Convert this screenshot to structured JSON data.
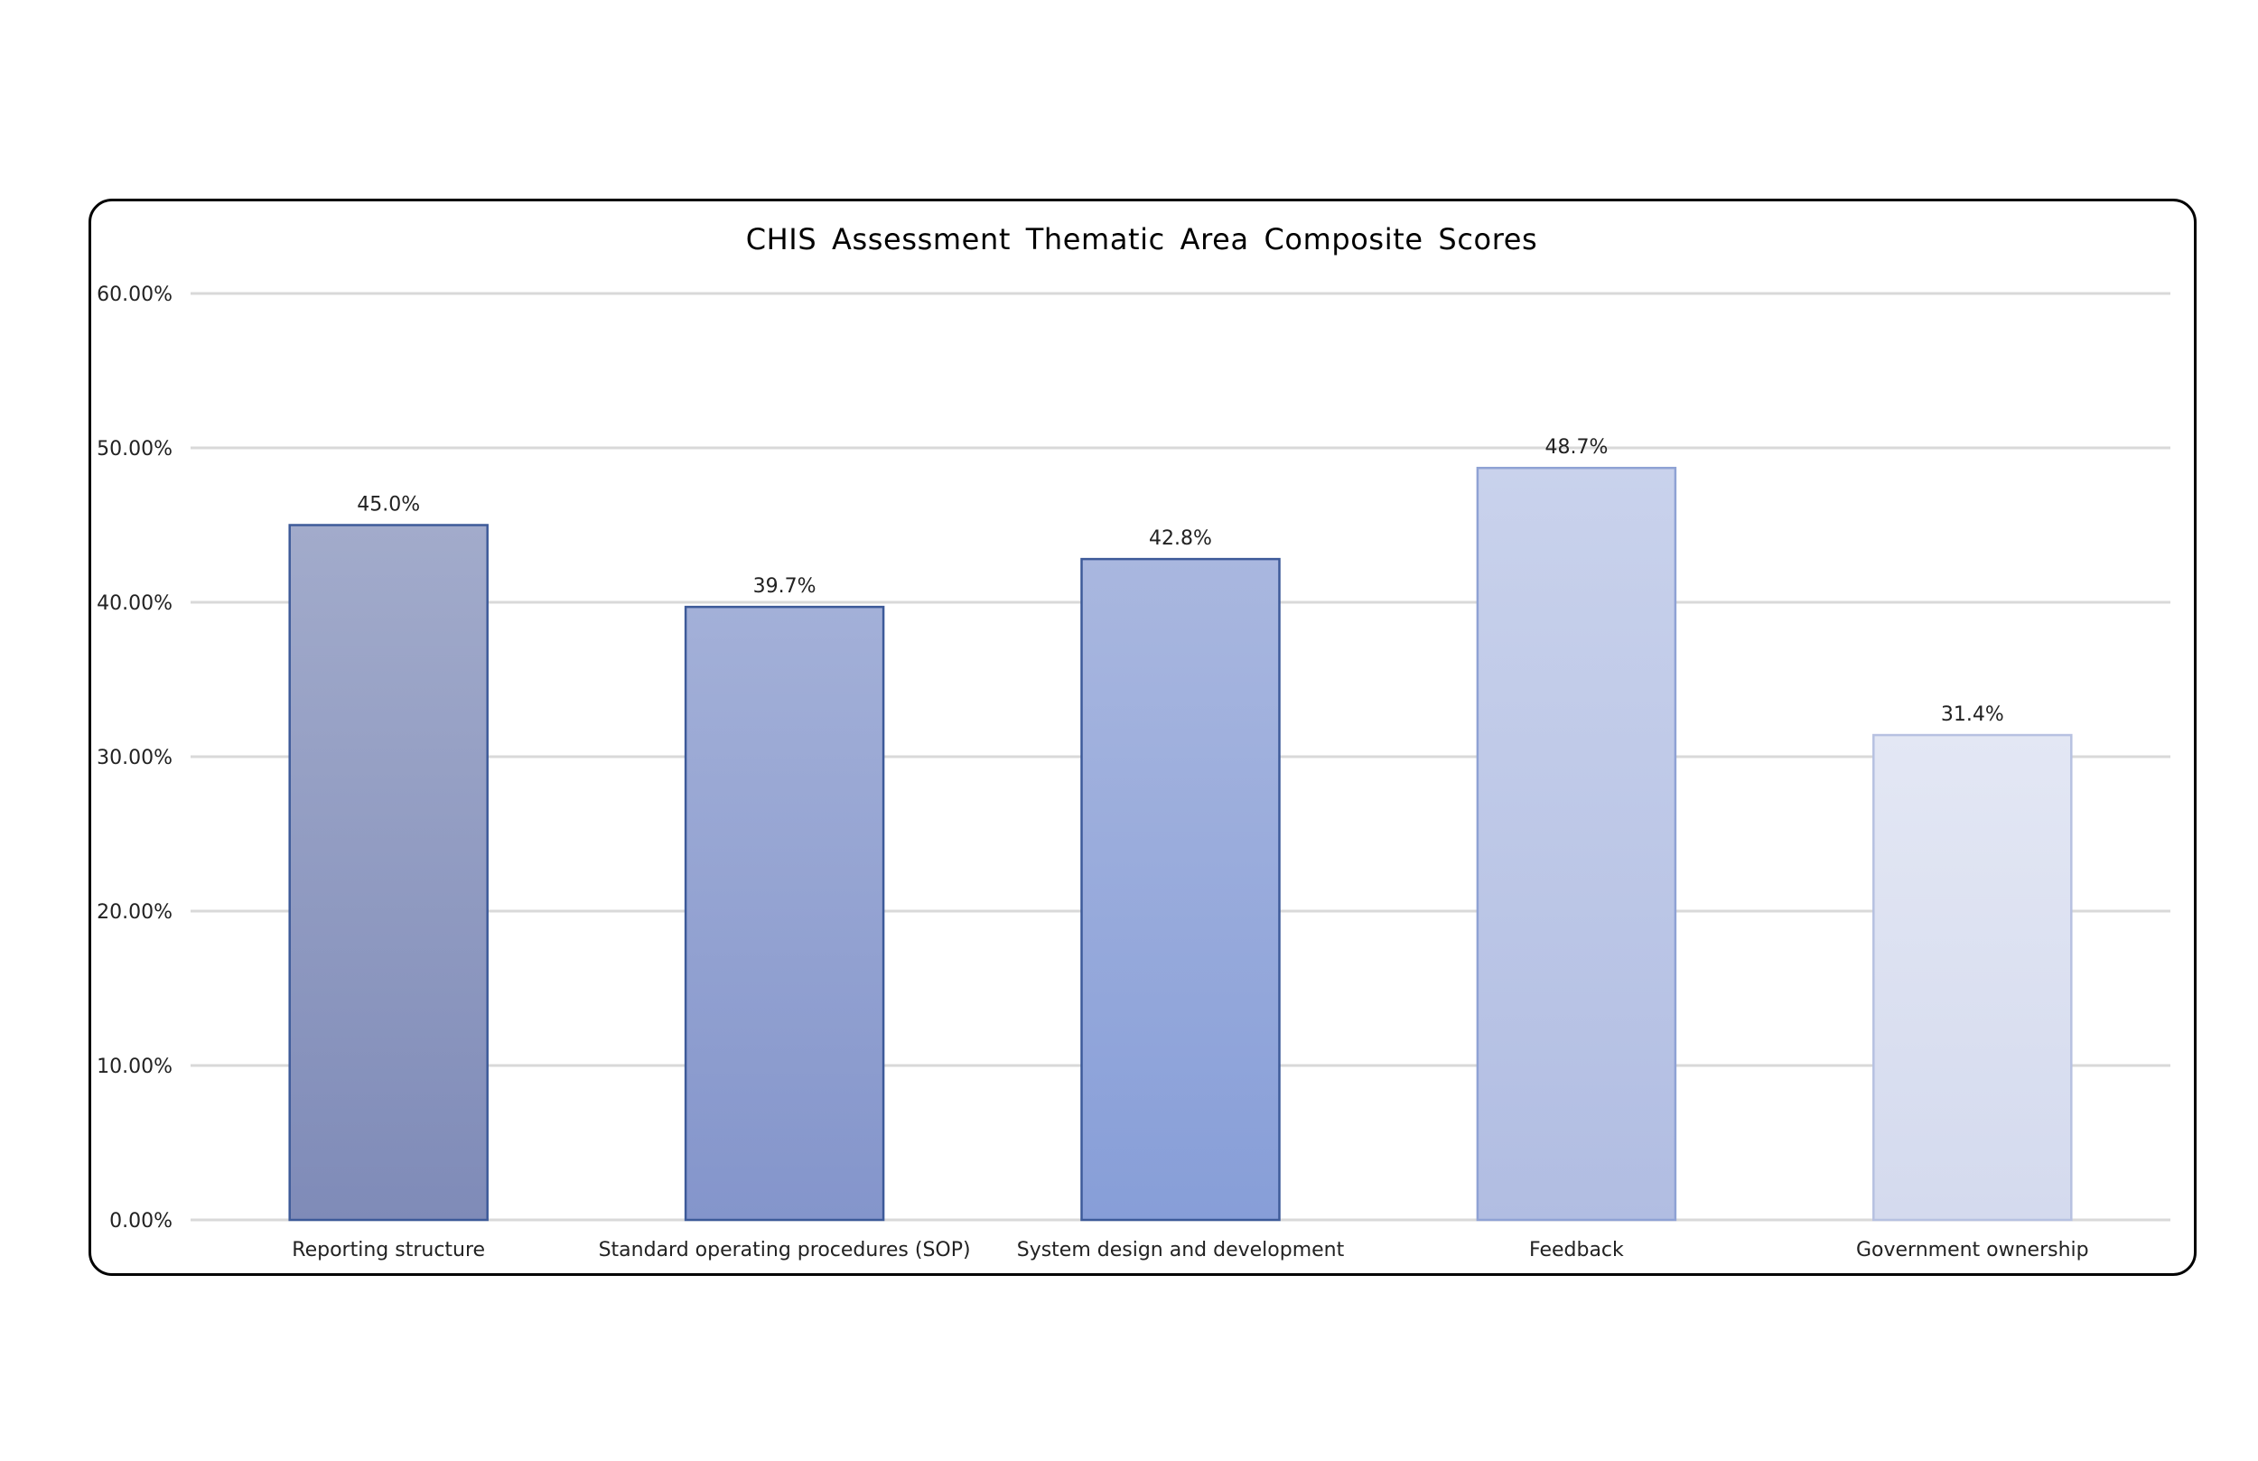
{
  "chart_data": {
    "type": "bar",
    "title": "CHIS Assessment Thematic Area Composite Scores",
    "xlabel": "",
    "ylabel": "",
    "categories": [
      "Reporting structure",
      "Standard operating procedures (SOP)",
      "System design and development",
      "Feedback",
      "Government ownership"
    ],
    "values": [
      45.0,
      39.7,
      42.8,
      48.7,
      31.4
    ],
    "value_labels": [
      "45.0%",
      "39.7%",
      "42.8%",
      "48.7%",
      "31.4%"
    ],
    "ylim": [
      0,
      60
    ],
    "yticks": [
      0,
      10,
      20,
      30,
      40,
      50,
      60
    ],
    "ytick_labels": [
      "0.00%",
      "10.00%",
      "20.00%",
      "30.00%",
      "40.00%",
      "50.00%",
      "60.00%"
    ],
    "grid": true,
    "legend": "none",
    "bar_colors": [
      {
        "top": "#a2abcb",
        "bottom": "#7f8bb8",
        "stroke": "#3d5a99"
      },
      {
        "top": "#a3b0d8",
        "bottom": "#8495cb",
        "stroke": "#3d5a99"
      },
      {
        "top": "#a9b7df",
        "bottom": "#879ed8",
        "stroke": "#3d5a99"
      },
      {
        "top": "#c9d2ec",
        "bottom": "#b1bde2",
        "stroke": "#8fa2d4"
      },
      {
        "top": "#e3e7f4",
        "bottom": "#d4daee",
        "stroke": "#b7c1e1"
      }
    ]
  }
}
